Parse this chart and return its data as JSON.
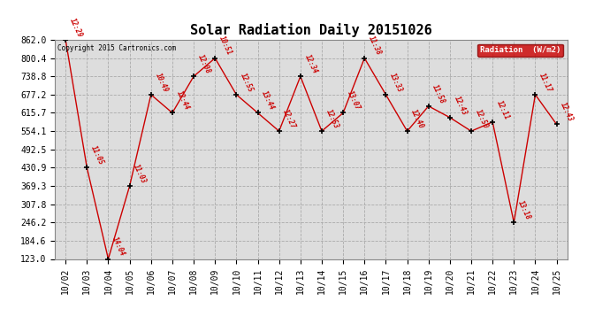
{
  "title": "Solar Radiation Daily 20151026",
  "copyright_text": "Copyright 2015 Cartronics.com",
  "legend_label": "Radiation  (W/m2)",
  "legend_bg": "#cc0000",
  "legend_fg": "#ffffff",
  "x_labels": [
    "10/02",
    "10/03",
    "10/04",
    "10/05",
    "10/06",
    "10/07",
    "10/08",
    "10/09",
    "10/10",
    "10/11",
    "10/12",
    "10/13",
    "10/14",
    "10/15",
    "10/16",
    "10/17",
    "10/18",
    "10/19",
    "10/20",
    "10/21",
    "10/22",
    "10/23",
    "10/24",
    "10/25"
  ],
  "y_values": [
    862.0,
    430.9,
    123.0,
    369.3,
    677.2,
    615.7,
    738.8,
    800.4,
    677.2,
    615.7,
    554.1,
    738.8,
    554.1,
    615.7,
    800.4,
    677.2,
    554.1,
    638.5,
    600.0,
    554.1,
    585.0,
    246.2,
    677.2,
    577.0
  ],
  "point_labels": [
    "12:29",
    "11:05",
    "14:04",
    "11:03",
    "10:49",
    "12:44",
    "12:08",
    "10:51",
    "12:55",
    "13:44",
    "12:27",
    "12:34",
    "12:53",
    "13:07",
    "11:38",
    "13:33",
    "12:40",
    "11:58",
    "12:43",
    "12:50",
    "12:11",
    "13:18",
    "11:17",
    "12:43"
  ],
  "line_color": "#cc0000",
  "marker_color": "#000000",
  "grid_color": "#aaaaaa",
  "background_color": "#ffffff",
  "plot_bg_color": "#dddddd",
  "y_ticks": [
    123.0,
    184.6,
    246.2,
    307.8,
    369.3,
    430.9,
    492.5,
    554.1,
    615.7,
    677.2,
    738.8,
    800.4,
    862.0
  ],
  "ylim": [
    123.0,
    862.0
  ],
  "title_fontsize": 11,
  "tick_fontsize": 7
}
